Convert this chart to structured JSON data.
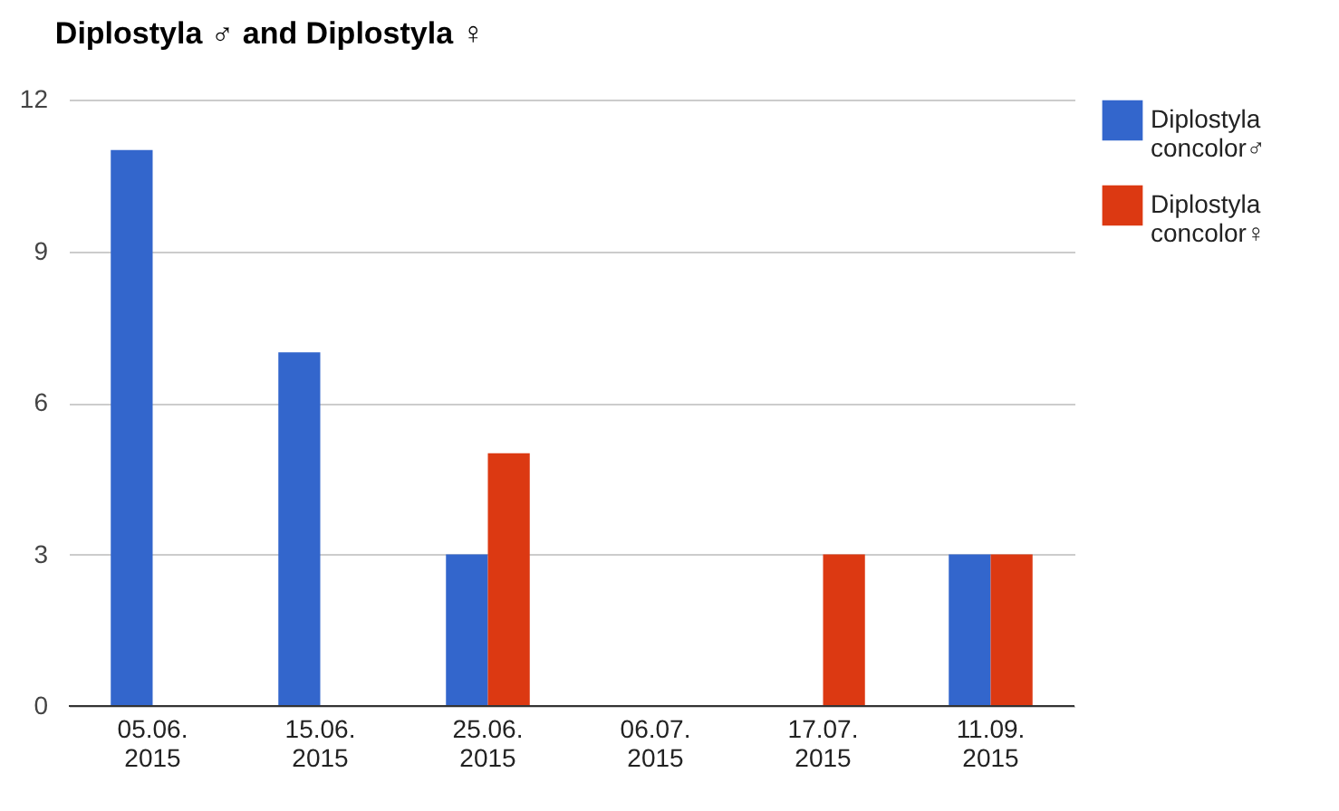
{
  "chart_data": {
    "type": "bar",
    "title": "Diplostyla ♂ and Diplostyla ♀",
    "categories": [
      "05.06. 2015",
      "15.06. 2015",
      "25.06. 2015",
      "06.07. 2015",
      "17.07. 2015",
      "11.09. 2015"
    ],
    "series": [
      {
        "name": "Diplostyla concolor♂",
        "color": "#3366cc",
        "values": [
          11,
          7,
          3,
          0,
          0,
          3
        ]
      },
      {
        "name": "Diplostyla concolor♀",
        "color": "#dc3912",
        "values": [
          0,
          0,
          5,
          0,
          3,
          3
        ]
      }
    ],
    "ylim": [
      0,
      12
    ],
    "yticks": [
      0,
      3,
      6,
      9,
      12
    ],
    "grid": "y",
    "legend": "top right"
  }
}
